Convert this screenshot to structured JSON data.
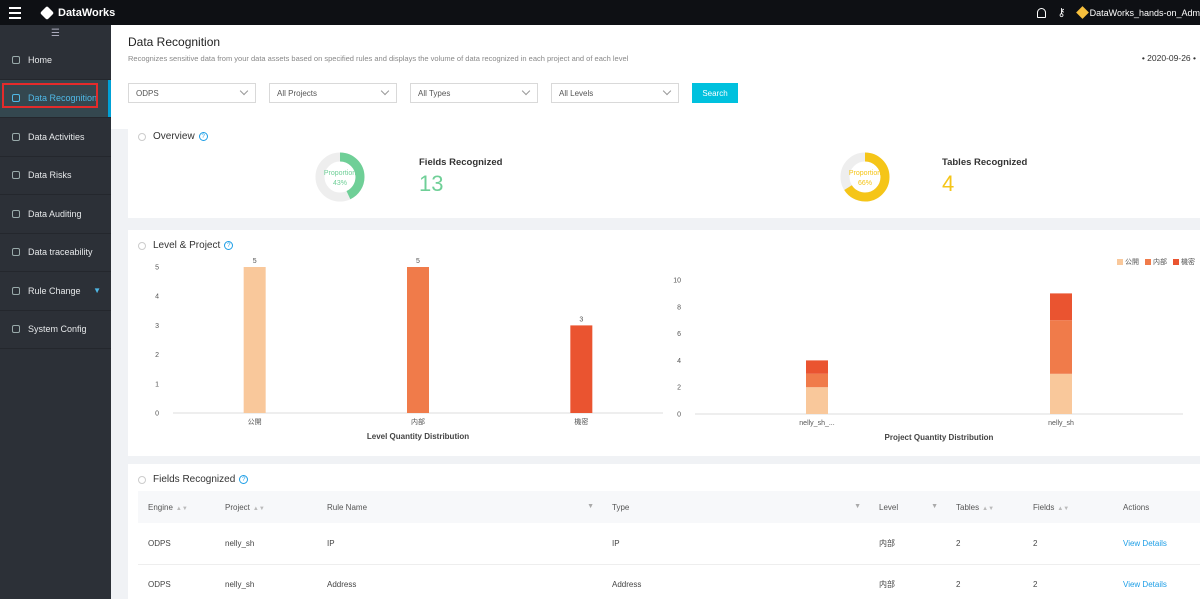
{
  "topbar": {
    "brand": "DataWorks",
    "user": "DataWorks_hands-on_Adm"
  },
  "sidebar": {
    "items": [
      {
        "label": "Home",
        "icon": "home-icon"
      },
      {
        "label": "Data Recognition",
        "icon": "recognition-icon"
      },
      {
        "label": "Data Activities",
        "icon": "activities-icon"
      },
      {
        "label": "Data Risks",
        "icon": "risks-icon"
      },
      {
        "label": "Data Auditing",
        "icon": "auditing-icon"
      },
      {
        "label": "Data traceability",
        "icon": "traceability-icon"
      },
      {
        "label": "Rule Change",
        "icon": "rule-change-icon"
      },
      {
        "label": "System Config",
        "icon": "system-config-icon"
      }
    ]
  },
  "header": {
    "title": "Data Recognition",
    "description": "Recognizes sensitive data from your data assets based on specified rules and displays the volume of data recognized in each project and of each level",
    "date": "• 2020-09-26 •"
  },
  "filters": {
    "engine": "ODPS",
    "project": "All Projects",
    "type": "All Types",
    "level": "All Levels",
    "search_label": "Search"
  },
  "overview": {
    "title": "Overview",
    "fields": {
      "label": "Fields Recognized",
      "value": "13",
      "ring_label": "Proportion",
      "percent_text": "43%",
      "percent": 43,
      "color": "#6fcf97"
    },
    "tables": {
      "label": "Tables Recognized",
      "value": "4",
      "ring_label": "Proportion",
      "percent_text": "66%",
      "percent": 66,
      "color": "#f5c518"
    }
  },
  "level_project": {
    "title": "Level & Project",
    "legend": [
      {
        "name": "公開",
        "color": "#f9c89b"
      },
      {
        "name": "内部",
        "color": "#f07b4a"
      },
      {
        "name": "機密",
        "color": "#ea5430"
      }
    ]
  },
  "chart_data": [
    {
      "type": "bar",
      "title": "Level Quantity Distribution",
      "categories": [
        "公開",
        "内部",
        "機密"
      ],
      "values": [
        5,
        5,
        3
      ],
      "colors": [
        "#f9c89b",
        "#f07b4a",
        "#ea5430"
      ],
      "yticks": [
        "0",
        "1",
        "2",
        "3",
        "4",
        "5"
      ],
      "ylim": [
        0,
        5
      ]
    },
    {
      "type": "bar",
      "stacked": true,
      "title": "Project Quantity Distribution",
      "categories": [
        "nelly_sh_...",
        "nelly_sh"
      ],
      "series": [
        {
          "name": "公開",
          "values": [
            2,
            3
          ],
          "color": "#f9c89b"
        },
        {
          "name": "内部",
          "values": [
            1,
            4
          ],
          "color": "#f07b4a"
        },
        {
          "name": "機密",
          "values": [
            1,
            2
          ],
          "color": "#ea5430"
        }
      ],
      "yticks": [
        "0",
        "2",
        "4",
        "6",
        "8",
        "10"
      ],
      "ylim": [
        0,
        10
      ]
    }
  ],
  "fields_table": {
    "title": "Fields Recognized",
    "columns": [
      "Engine",
      "Project",
      "Rule Name",
      "Type",
      "Level",
      "Tables",
      "Fields",
      "Actions"
    ],
    "rows": [
      {
        "engine": "ODPS",
        "project": "nelly_sh",
        "rule": "IP",
        "type": "IP",
        "level": "内部",
        "tables": "2",
        "fields": "2",
        "action": "View Details"
      },
      {
        "engine": "ODPS",
        "project": "nelly_sh",
        "rule": "Address",
        "type": "Address",
        "level": "内部",
        "tables": "2",
        "fields": "2",
        "action": "View Details"
      }
    ]
  }
}
